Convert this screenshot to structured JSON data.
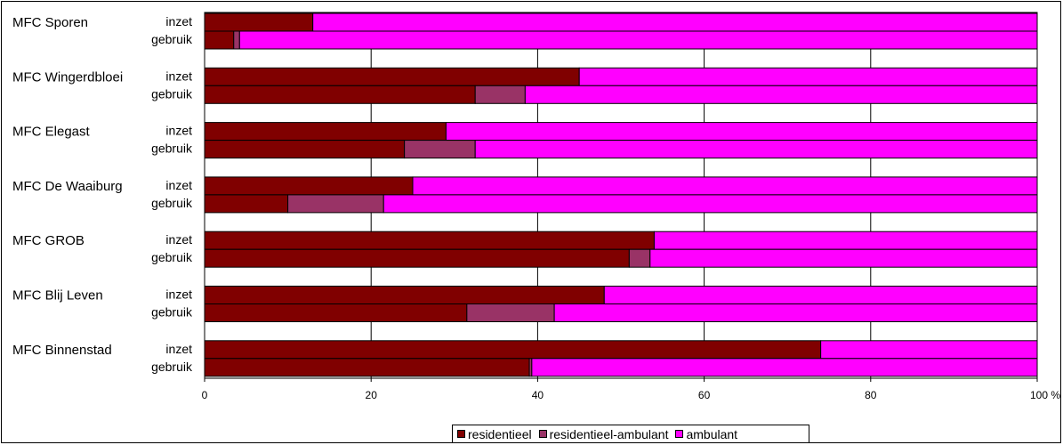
{
  "chart_data": {
    "type": "bar",
    "orientation": "horizontal",
    "stacked": "percent",
    "groups": [
      {
        "name": "MFC Sporen",
        "rows": [
          {
            "label": "inzet",
            "values": [
              13,
              0,
              87
            ]
          },
          {
            "label": "gebruik",
            "values": [
              3.5,
              0.7,
              95.8
            ]
          }
        ]
      },
      {
        "name": "MFC Wingerdbloei",
        "rows": [
          {
            "label": "inzet",
            "values": [
              45,
              0,
              55
            ]
          },
          {
            "label": "gebruik",
            "values": [
              32.5,
              6,
              61.5
            ]
          }
        ]
      },
      {
        "name": "MFC Elegast",
        "rows": [
          {
            "label": "inzet",
            "values": [
              29,
              0,
              71
            ]
          },
          {
            "label": "gebruik",
            "values": [
              24,
              8.5,
              67.5
            ]
          }
        ]
      },
      {
        "name": "MFC De Waaiburg",
        "rows": [
          {
            "label": "inzet",
            "values": [
              25,
              0,
              75
            ]
          },
          {
            "label": "gebruik",
            "values": [
              10,
              11.5,
              78.5
            ]
          }
        ]
      },
      {
        "name": "MFC GROB",
        "rows": [
          {
            "label": "inzet",
            "values": [
              54,
              0,
              46
            ]
          },
          {
            "label": "gebruik",
            "values": [
              51,
              2.5,
              46.5
            ]
          }
        ]
      },
      {
        "name": "MFC Blij Leven",
        "rows": [
          {
            "label": "inzet",
            "values": [
              48,
              0,
              52
            ]
          },
          {
            "label": "gebruik",
            "values": [
              31.5,
              10.5,
              58
            ]
          }
        ]
      },
      {
        "name": "MFC Binnenstad",
        "rows": [
          {
            "label": "inzet",
            "values": [
              74,
              0,
              26
            ]
          },
          {
            "label": "gebruik",
            "values": [
              39,
              0.3,
              60.7
            ]
          }
        ]
      }
    ],
    "series": [
      {
        "name": "residentieel",
        "color": "#800000"
      },
      {
        "name": "residentieel-ambulant",
        "color": "#993366"
      },
      {
        "name": "ambulant",
        "color": "#ff00ff"
      }
    ],
    "xticks": [
      "0",
      "20",
      "40",
      "60",
      "80",
      "100 %"
    ],
    "xlim": [
      0,
      100
    ],
    "grid": true,
    "legend_position": "bottom"
  }
}
